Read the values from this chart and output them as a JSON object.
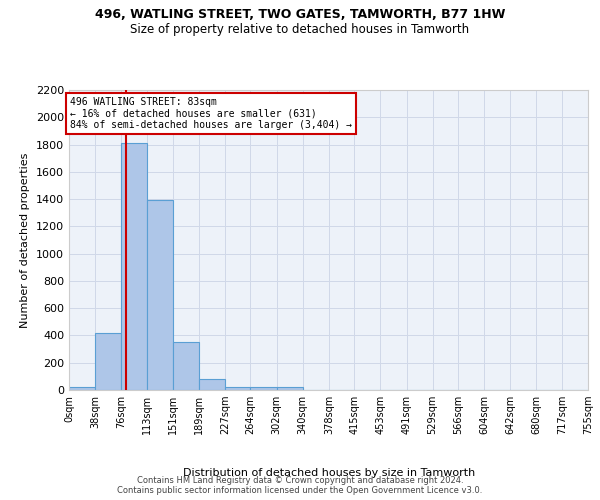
{
  "title1": "496, WATLING STREET, TWO GATES, TAMWORTH, B77 1HW",
  "title2": "Size of property relative to detached houses in Tamworth",
  "xlabel": "Distribution of detached houses by size in Tamworth",
  "ylabel": "Number of detached properties",
  "annotation_title": "496 WATLING STREET: 83sqm",
  "annotation_line1": "← 16% of detached houses are smaller (631)",
  "annotation_line2": "84% of semi-detached houses are larger (3,404) →",
  "footer1": "Contains HM Land Registry data © Crown copyright and database right 2024.",
  "footer2": "Contains public sector information licensed under the Open Government Licence v3.0.",
  "bin_edges": [
    0,
    38,
    76,
    113,
    151,
    189,
    227,
    264,
    302,
    340,
    378,
    415,
    453,
    491,
    529,
    566,
    604,
    642,
    680,
    717,
    755
  ],
  "bin_counts": [
    20,
    420,
    1810,
    1390,
    355,
    80,
    25,
    20,
    20,
    0,
    0,
    0,
    0,
    0,
    0,
    0,
    0,
    0,
    0,
    0
  ],
  "tick_labels": [
    "0sqm",
    "38sqm",
    "76sqm",
    "113sqm",
    "151sqm",
    "189sqm",
    "227sqm",
    "264sqm",
    "302sqm",
    "340sqm",
    "378sqm",
    "415sqm",
    "453sqm",
    "491sqm",
    "529sqm",
    "566sqm",
    "604sqm",
    "642sqm",
    "680sqm",
    "717sqm",
    "755sqm"
  ],
  "property_size": 83,
  "bar_color": "#aec6e8",
  "bar_edge_color": "#5a9fd4",
  "red_line_color": "#cc0000",
  "annotation_box_color": "#ffffff",
  "annotation_box_edge": "#cc0000",
  "grid_color": "#d0d8e8",
  "bg_color": "#edf2f9",
  "ylim": [
    0,
    2200
  ],
  "yticks": [
    0,
    200,
    400,
    600,
    800,
    1000,
    1200,
    1400,
    1600,
    1800,
    2000,
    2200
  ]
}
